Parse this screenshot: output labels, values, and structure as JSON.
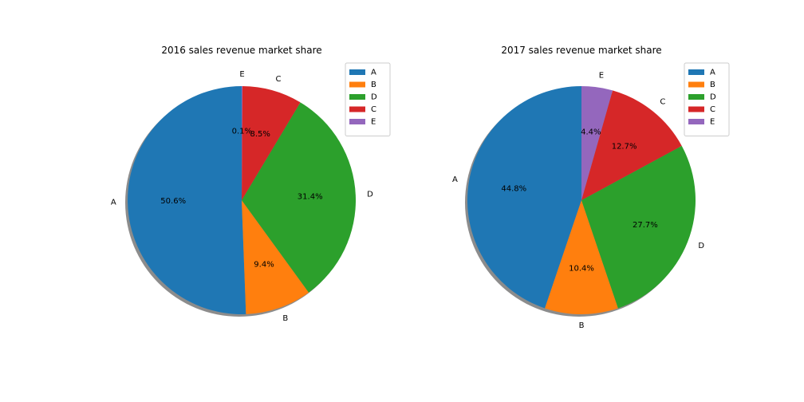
{
  "chart_data": [
    {
      "type": "pie",
      "title": "2016 sales revenue market share",
      "slices": [
        {
          "label": "A",
          "value": 50.6,
          "pct_label": "50.6%"
        },
        {
          "label": "B",
          "value": 9.4,
          "pct_label": "9.4%"
        },
        {
          "label": "D",
          "value": 31.4,
          "pct_label": "31.4%"
        },
        {
          "label": "C",
          "value": 8.5,
          "pct_label": "8.5%"
        },
        {
          "label": "E",
          "value": 0.1,
          "pct_label": "0.1%"
        }
      ],
      "legend": [
        "A",
        "B",
        "D",
        "C",
        "E"
      ],
      "legend_placement": "top-right",
      "shadow": true,
      "start_angle_deg": 90,
      "direction": "counterclockwise"
    },
    {
      "type": "pie",
      "title": "2017 sales revenue market share",
      "slices": [
        {
          "label": "A",
          "value": 44.8,
          "pct_label": "44.8%"
        },
        {
          "label": "B",
          "value": 10.4,
          "pct_label": "10.4%"
        },
        {
          "label": "D",
          "value": 27.7,
          "pct_label": "27.7%"
        },
        {
          "label": "C",
          "value": 12.7,
          "pct_label": "12.7%"
        },
        {
          "label": "E",
          "value": 4.4,
          "pct_label": "4.4%"
        }
      ],
      "legend": [
        "A",
        "B",
        "D",
        "C",
        "E"
      ],
      "legend_placement": "top-right",
      "shadow": true,
      "start_angle_deg": 90,
      "direction": "counterclockwise"
    }
  ],
  "colors": {
    "A": "#1f77b4",
    "B": "#ff7f0e",
    "D": "#2ca02c",
    "C": "#d62728",
    "E": "#9467bd"
  }
}
